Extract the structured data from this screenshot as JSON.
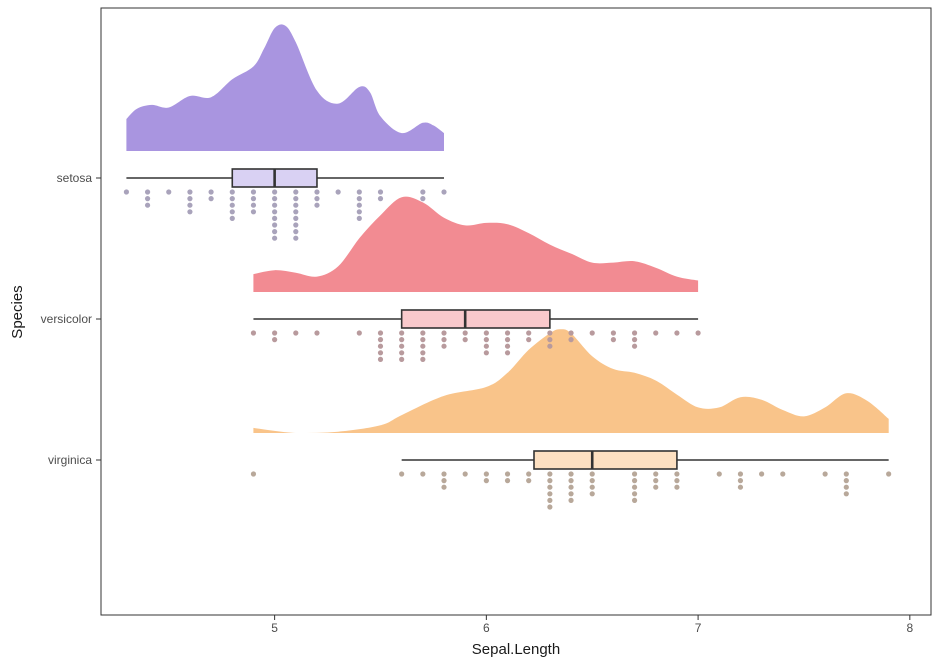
{
  "chart_data": {
    "type": "raincloud",
    "title": "",
    "xlabel": "Sepal.Length",
    "ylabel": "Species",
    "xlim": [
      4.18,
      8.1
    ],
    "x_ticks": [
      "5",
      "6",
      "7",
      "8"
    ],
    "grid": false,
    "legend": "none",
    "categories": [
      "setosa",
      "versicolor",
      "virginica"
    ],
    "series": [
      {
        "name": "setosa",
        "fill_color": "#a995e0",
        "box_fill": "#d9d1f3",
        "dot_color": "#a9a3bb",
        "box": {
          "min": 4.3,
          "q1": 4.8,
          "median": 5.0,
          "q3": 5.2,
          "max": 5.8
        },
        "density": [
          [
            4.3,
            0.25
          ],
          [
            4.35,
            0.33
          ],
          [
            4.42,
            0.36
          ],
          [
            4.5,
            0.34
          ],
          [
            4.6,
            0.43
          ],
          [
            4.7,
            0.42
          ],
          [
            4.8,
            0.56
          ],
          [
            4.9,
            0.66
          ],
          [
            4.95,
            0.8
          ],
          [
            5.0,
            0.96
          ],
          [
            5.05,
            0.98
          ],
          [
            5.1,
            0.85
          ],
          [
            5.2,
            0.47
          ],
          [
            5.3,
            0.37
          ],
          [
            5.4,
            0.5
          ],
          [
            5.45,
            0.46
          ],
          [
            5.5,
            0.27
          ],
          [
            5.6,
            0.14
          ],
          [
            5.7,
            0.22
          ],
          [
            5.75,
            0.2
          ],
          [
            5.8,
            0.14
          ]
        ],
        "dots": [
          [
            4.3,
            1
          ],
          [
            4.4,
            3
          ],
          [
            4.5,
            1
          ],
          [
            4.6,
            4
          ],
          [
            4.7,
            2
          ],
          [
            4.8,
            5
          ],
          [
            4.9,
            4
          ],
          [
            5.0,
            8
          ],
          [
            5.1,
            8
          ],
          [
            5.2,
            3
          ],
          [
            5.3,
            1
          ],
          [
            5.4,
            5
          ],
          [
            5.5,
            2
          ],
          [
            5.7,
            2
          ],
          [
            5.8,
            1
          ]
        ]
      },
      {
        "name": "versicolor",
        "fill_color": "#f28b92",
        "box_fill": "#f9c9cc",
        "dot_color": "#b89a9d",
        "box": {
          "min": 4.9,
          "q1": 5.6,
          "median": 5.9,
          "q3": 6.3,
          "max": 7.0
        },
        "density": [
          [
            4.9,
            0.14
          ],
          [
            5.0,
            0.17
          ],
          [
            5.1,
            0.15
          ],
          [
            5.2,
            0.12
          ],
          [
            5.3,
            0.2
          ],
          [
            5.4,
            0.42
          ],
          [
            5.5,
            0.6
          ],
          [
            5.6,
            0.74
          ],
          [
            5.7,
            0.7
          ],
          [
            5.8,
            0.58
          ],
          [
            5.9,
            0.52
          ],
          [
            6.0,
            0.54
          ],
          [
            6.1,
            0.53
          ],
          [
            6.2,
            0.46
          ],
          [
            6.3,
            0.37
          ],
          [
            6.4,
            0.3
          ],
          [
            6.5,
            0.23
          ],
          [
            6.6,
            0.23
          ],
          [
            6.7,
            0.24
          ],
          [
            6.8,
            0.19
          ],
          [
            6.9,
            0.12
          ],
          [
            7.0,
            0.09
          ]
        ],
        "dots": [
          [
            4.9,
            1
          ],
          [
            5.0,
            2
          ],
          [
            5.1,
            1
          ],
          [
            5.2,
            1
          ],
          [
            5.4,
            1
          ],
          [
            5.5,
            5
          ],
          [
            5.6,
            5
          ],
          [
            5.7,
            5
          ],
          [
            5.8,
            3
          ],
          [
            5.9,
            2
          ],
          [
            6.0,
            4
          ],
          [
            6.1,
            4
          ],
          [
            6.2,
            2
          ],
          [
            6.3,
            3
          ],
          [
            6.4,
            2
          ],
          [
            6.5,
            1
          ],
          [
            6.6,
            2
          ],
          [
            6.7,
            3
          ],
          [
            6.8,
            1
          ],
          [
            6.9,
            1
          ],
          [
            7.0,
            1
          ]
        ]
      },
      {
        "name": "virginica",
        "fill_color": "#f9c48a",
        "box_fill": "#fde0c1",
        "dot_color": "#b8a89a",
        "box": {
          "min": 5.6,
          "q1": 6.225,
          "median": 6.5,
          "q3": 6.9,
          "max": 7.9
        },
        "density": [
          [
            4.9,
            0.04
          ],
          [
            5.1,
            0.0
          ],
          [
            5.3,
            0.01
          ],
          [
            5.5,
            0.06
          ],
          [
            5.6,
            0.14
          ],
          [
            5.8,
            0.29
          ],
          [
            6.0,
            0.36
          ],
          [
            6.1,
            0.47
          ],
          [
            6.2,
            0.65
          ],
          [
            6.3,
            0.78
          ],
          [
            6.35,
            0.81
          ],
          [
            6.4,
            0.78
          ],
          [
            6.5,
            0.6
          ],
          [
            6.6,
            0.5
          ],
          [
            6.7,
            0.47
          ],
          [
            6.8,
            0.41
          ],
          [
            6.9,
            0.3
          ],
          [
            7.0,
            0.2
          ],
          [
            7.1,
            0.2
          ],
          [
            7.2,
            0.28
          ],
          [
            7.3,
            0.26
          ],
          [
            7.4,
            0.18
          ],
          [
            7.5,
            0.13
          ],
          [
            7.6,
            0.2
          ],
          [
            7.7,
            0.31
          ],
          [
            7.8,
            0.25
          ],
          [
            7.9,
            0.11
          ]
        ],
        "dots": [
          [
            4.9,
            1
          ],
          [
            5.6,
            1
          ],
          [
            5.7,
            1
          ],
          [
            5.8,
            3
          ],
          [
            5.9,
            1
          ],
          [
            6.0,
            2
          ],
          [
            6.1,
            2
          ],
          [
            6.2,
            2
          ],
          [
            6.3,
            6
          ],
          [
            6.4,
            5
          ],
          [
            6.5,
            4
          ],
          [
            6.7,
            5
          ],
          [
            6.8,
            3
          ],
          [
            6.9,
            3
          ],
          [
            7.1,
            1
          ],
          [
            7.2,
            3
          ],
          [
            7.3,
            1
          ],
          [
            7.4,
            1
          ],
          [
            7.6,
            1
          ],
          [
            7.7,
            4
          ],
          [
            7.9,
            1
          ]
        ]
      }
    ]
  }
}
